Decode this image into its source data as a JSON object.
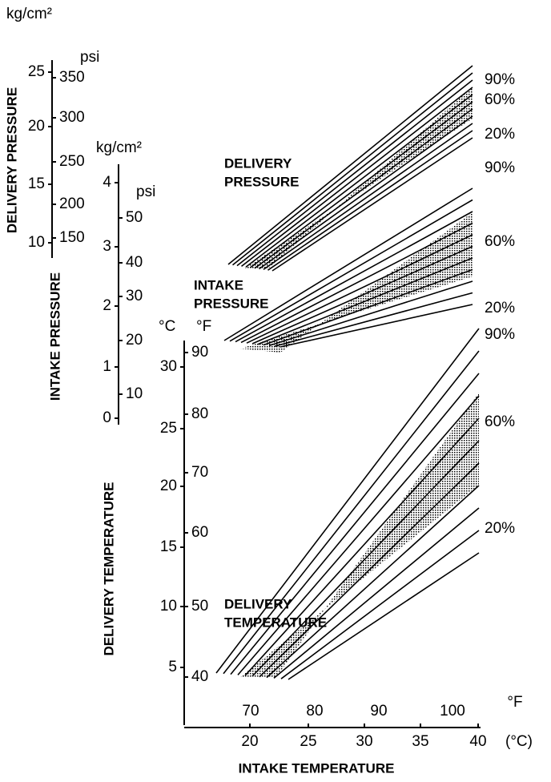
{
  "axes": {
    "delivery_pressure": {
      "title": "DELIVERY PRESSURE",
      "unit1": "kg/cm²",
      "unit2": "psi",
      "ticks1": [
        "25",
        "20",
        "15",
        "10"
      ],
      "ticks2": [
        "350",
        "300",
        "250",
        "200",
        "150"
      ]
    },
    "intake_pressure": {
      "title": "INTAKE PRESSURE",
      "unit1": "kg/cm²",
      "unit2": "psi",
      "ticks1": [
        "4",
        "3",
        "2",
        "1",
        "0"
      ],
      "ticks2": [
        "50",
        "40",
        "30",
        "20",
        "10"
      ]
    },
    "delivery_temperature": {
      "title": "DELIVERY TEMPERATURE",
      "unit1": "°C",
      "unit2": "°F",
      "ticks1": [
        "30",
        "25",
        "20",
        "15",
        "10",
        "5"
      ],
      "ticks2": [
        "90",
        "80",
        "70",
        "60",
        "50",
        "40"
      ]
    },
    "intake_temperature": {
      "title": "INTAKE TEMPERATURE",
      "unit1": "(°C)",
      "unit2": "°F",
      "ticks1": [
        "20",
        "25",
        "30",
        "35",
        "40"
      ],
      "ticks2": [
        "70",
        "80",
        "90",
        "100"
      ]
    }
  },
  "groups": [
    {
      "label": [
        "DELIVERY",
        "PRESSURE"
      ],
      "percents": [
        "90%",
        "60%",
        "20%"
      ]
    },
    {
      "label": [
        "INTAKE",
        "PRESSURE"
      ],
      "percents": [
        "90%",
        "60%",
        "20%"
      ]
    },
    {
      "label": [
        "DELIVERY",
        "TEMPERATURE"
      ],
      "percents": [
        "90%",
        "60%",
        "20%"
      ]
    }
  ]
}
